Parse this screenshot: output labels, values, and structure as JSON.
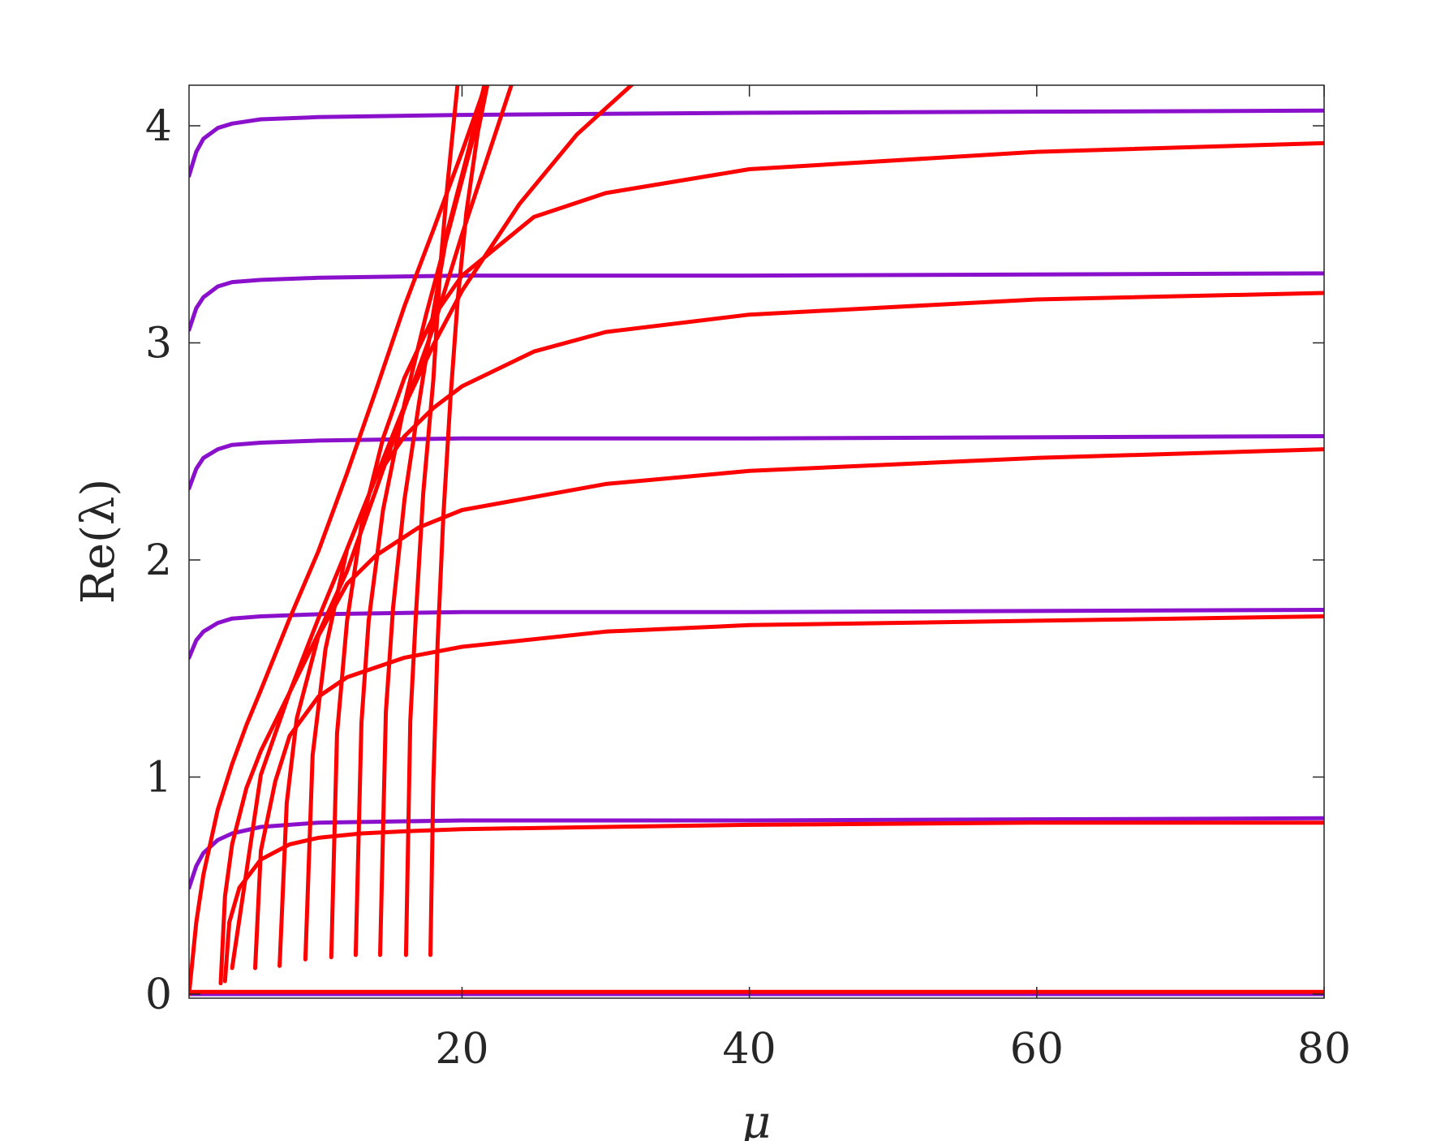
{
  "chart_data": {
    "type": "line",
    "title": "",
    "xlabel": "μ",
    "ylabel": "Re(λ)",
    "xlim": [
      1,
      80
    ],
    "ylim": [
      0,
      4.2
    ],
    "xticks": [
      20,
      40,
      60,
      80
    ],
    "yticks": [
      0,
      1,
      2,
      3,
      4
    ],
    "xtick_labels": [
      "20",
      "40",
      "60",
      "80"
    ],
    "ytick_labels": [
      "0",
      "1",
      "2",
      "3",
      "4"
    ],
    "grid": false,
    "legend": "none",
    "colors": {
      "red": "#ff0000",
      "purple": "#8b10cc",
      "axis": "#262626"
    },
    "series": [
      {
        "color": "purple",
        "x": [
          1,
          1.5,
          2,
          3,
          4,
          6,
          10,
          20,
          40,
          80
        ],
        "y": [
          3.77,
          3.88,
          3.94,
          3.99,
          4.01,
          4.03,
          4.04,
          4.05,
          4.06,
          4.07
        ]
      },
      {
        "color": "purple",
        "x": [
          1,
          1.5,
          2,
          3,
          4,
          6,
          10,
          20,
          40,
          80
        ],
        "y": [
          3.06,
          3.16,
          3.21,
          3.26,
          3.28,
          3.29,
          3.3,
          3.31,
          3.31,
          3.32
        ]
      },
      {
        "color": "purple",
        "x": [
          1,
          1.5,
          2,
          3,
          4,
          6,
          10,
          20,
          40,
          80
        ],
        "y": [
          2.33,
          2.42,
          2.47,
          2.51,
          2.53,
          2.54,
          2.55,
          2.56,
          2.56,
          2.57
        ]
      },
      {
        "color": "purple",
        "x": [
          1,
          1.5,
          2,
          3,
          4,
          6,
          10,
          20,
          40,
          80
        ],
        "y": [
          1.55,
          1.63,
          1.67,
          1.71,
          1.73,
          1.74,
          1.75,
          1.76,
          1.76,
          1.77
        ]
      },
      {
        "color": "purple",
        "x": [
          1,
          1.5,
          2,
          3,
          4,
          6,
          10,
          20,
          40,
          80
        ],
        "y": [
          0.49,
          0.59,
          0.65,
          0.71,
          0.74,
          0.77,
          0.79,
          0.8,
          0.8,
          0.81
        ]
      },
      {
        "color": "purple",
        "x": [
          1,
          80
        ],
        "y": [
          0,
          0
        ]
      },
      {
        "color": "red",
        "x": [
          1,
          80
        ],
        "y": [
          0.01,
          0.01
        ]
      },
      {
        "color": "red",
        "x": [
          1,
          1.5,
          2,
          3,
          4,
          5,
          6,
          8,
          10,
          12,
          14,
          16,
          18,
          20,
          21.7
        ],
        "y": [
          0,
          0.33,
          0.55,
          0.85,
          1.06,
          1.24,
          1.4,
          1.73,
          2.04,
          2.4,
          2.78,
          3.17,
          3.52,
          3.88,
          4.2
        ]
      },
      {
        "color": "red",
        "x": [
          3.2,
          3.5,
          4,
          5,
          6,
          8,
          10,
          12,
          14,
          16,
          18,
          20,
          23.5
        ],
        "y": [
          0.05,
          0.45,
          0.69,
          0.95,
          1.12,
          1.39,
          1.66,
          1.95,
          2.32,
          2.7,
          3.07,
          3.5,
          4.2
        ]
      },
      {
        "color": "red",
        "x": [
          3.5,
          3.8,
          4.5,
          6,
          8,
          10,
          13,
          16,
          20,
          30,
          40,
          60,
          80
        ],
        "y": [
          0.06,
          0.33,
          0.49,
          0.62,
          0.69,
          0.72,
          0.74,
          0.75,
          0.76,
          0.77,
          0.78,
          0.79,
          0.79
        ]
      },
      {
        "color": "red",
        "x": [
          4,
          6,
          8,
          10,
          12,
          14,
          16,
          18,
          20,
          24,
          28,
          32
        ],
        "y": [
          0.12,
          1.01,
          1.39,
          1.73,
          2.05,
          2.38,
          2.71,
          2.99,
          3.24,
          3.64,
          3.96,
          4.2
        ]
      },
      {
        "color": "red",
        "x": [
          5.6,
          6,
          7,
          8,
          10,
          12,
          16,
          20,
          30,
          40,
          60,
          80
        ],
        "y": [
          0.12,
          0.66,
          0.98,
          1.19,
          1.37,
          1.46,
          1.55,
          1.6,
          1.67,
          1.7,
          1.72,
          1.74
        ]
      },
      {
        "color": "red",
        "x": [
          7.3,
          7.8,
          8.5,
          10,
          12,
          14,
          17,
          20,
          30,
          40,
          60,
          80
        ],
        "y": [
          0.13,
          0.88,
          1.27,
          1.65,
          1.89,
          2.02,
          2.15,
          2.23,
          2.35,
          2.41,
          2.47,
          2.51
        ]
      },
      {
        "color": "red",
        "x": [
          9.1,
          9.6,
          10.5,
          12,
          14,
          16,
          18,
          20,
          25,
          30,
          40,
          60,
          80
        ],
        "y": [
          0.16,
          1.1,
          1.59,
          2.05,
          2.38,
          2.57,
          2.7,
          2.8,
          2.96,
          3.05,
          3.13,
          3.2,
          3.23
        ]
      },
      {
        "color": "red",
        "x": [
          10.9,
          11.3,
          12,
          13,
          14.5,
          16,
          18,
          20,
          25,
          30,
          40,
          60,
          80
        ],
        "y": [
          0.17,
          1.2,
          1.72,
          2.16,
          2.56,
          2.84,
          3.12,
          3.31,
          3.58,
          3.69,
          3.8,
          3.88,
          3.92
        ]
      },
      {
        "color": "red",
        "x": [
          12.6,
          13,
          13.5,
          14.5,
          16,
          17.5,
          19,
          21,
          21.6
        ],
        "y": [
          0.18,
          1.25,
          1.72,
          2.23,
          2.72,
          3.13,
          3.5,
          4.0,
          4.2
        ]
      },
      {
        "color": "red",
        "x": [
          14.3,
          14.7,
          15.2,
          16,
          17,
          18,
          19,
          20.5,
          21.6
        ],
        "y": [
          0.18,
          1.3,
          1.78,
          2.28,
          2.72,
          3.14,
          3.52,
          3.9,
          4.2
        ]
      },
      {
        "color": "red",
        "x": [
          16.1,
          16.4,
          16.8,
          17.3,
          18,
          18.5,
          19,
          19.7
        ],
        "y": [
          0.18,
          1.26,
          1.76,
          2.31,
          2.83,
          3.36,
          3.74,
          4.2
        ]
      },
      {
        "color": "red",
        "x": [
          17.8,
          18.0,
          18.3,
          18.7,
          19.2,
          19.7,
          20.3,
          21.1,
          21.8
        ],
        "y": [
          0.18,
          0.98,
          1.62,
          2.2,
          2.75,
          3.2,
          3.6,
          3.97,
          4.2
        ]
      }
    ]
  }
}
